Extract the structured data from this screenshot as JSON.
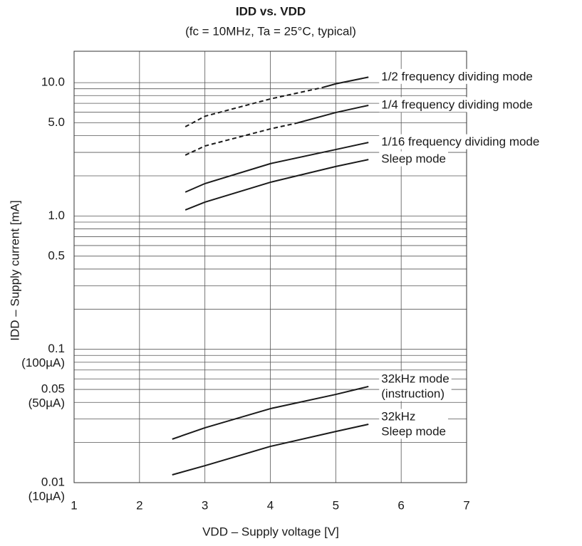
{
  "chart_data": {
    "type": "line",
    "title": "IDD vs. VDD",
    "subtitle": "(fc = 10MHz, Ta = 25°C, typical)",
    "xlabel": "VDD – Supply voltage [V]",
    "ylabel": "IDD – Supply current [mA]",
    "xlim": [
      1,
      7
    ],
    "xticks": [
      1,
      2,
      3,
      4,
      5,
      6,
      7
    ],
    "ylim": [
      0.01,
      17.2
    ],
    "log_y": true,
    "grid": true,
    "yticks": [
      {
        "value": 0.01,
        "label": "0.01",
        "sublabel": "(10µA)"
      },
      {
        "value": 0.05,
        "label": "0.05",
        "sublabel": "(50µA)"
      },
      {
        "value": 0.1,
        "label": "0.1",
        "sublabel": "(100µA)"
      },
      {
        "value": 0.5,
        "label": "0.5"
      },
      {
        "value": 1,
        "label": "1.0"
      },
      {
        "value": 5,
        "label": "5.0"
      },
      {
        "value": 10,
        "label": "10.0"
      }
    ],
    "yminor": [
      0.02,
      0.03,
      0.04,
      0.06,
      0.07,
      0.08,
      0.09,
      0.2,
      0.3,
      0.4,
      0.6,
      0.7,
      0.8,
      0.9,
      2,
      3,
      4,
      6,
      7,
      8,
      9
    ],
    "color": "#1a1a1a",
    "series": [
      {
        "name": [
          "1/2 frequency dividing mode"
        ],
        "segments": [
          {
            "dashed": true,
            "x": [
              2.7,
              3,
              4,
              4.8
            ],
            "values": [
              4.67,
              5.6,
              7.55,
              9.2
            ]
          },
          {
            "dashed": false,
            "x": [
              4.8,
              5,
              5.5
            ],
            "values": [
              9.2,
              9.8,
              11.0
            ]
          }
        ]
      },
      {
        "name": [
          "1/4 frequency dividing mode"
        ],
        "segments": [
          {
            "dashed": true,
            "x": [
              2.7,
              3,
              4,
              4.4
            ],
            "values": [
              2.86,
              3.35,
              4.5,
              4.97
            ]
          },
          {
            "dashed": false,
            "x": [
              4.4,
              5,
              5.5
            ],
            "values": [
              4.97,
              5.97,
              6.76
            ]
          }
        ]
      },
      {
        "name": [
          "1/16 frequency dividing mode"
        ],
        "segments": [
          {
            "dashed": false,
            "x": [
              2.7,
              3,
              4,
              5,
              5.5
            ],
            "values": [
              1.51,
              1.75,
              2.47,
              3.15,
              3.56
            ]
          }
        ]
      },
      {
        "name": [
          "Sleep mode"
        ],
        "segments": [
          {
            "dashed": false,
            "x": [
              2.7,
              3,
              4,
              5,
              5.5
            ],
            "values": [
              1.11,
              1.27,
              1.79,
              2.35,
              2.65
            ]
          }
        ]
      },
      {
        "name": [
          "32kHz mode",
          "(instruction)"
        ],
        "segments": [
          {
            "dashed": false,
            "x": [
              2.5,
              3,
              4,
              5,
              5.5
            ],
            "values": [
              0.0212,
              0.0258,
              0.0359,
              0.0459,
              0.0526
            ]
          }
        ]
      },
      {
        "name": [
          "32kHz",
          "Sleep mode"
        ],
        "segments": [
          {
            "dashed": false,
            "x": [
              2.5,
              3,
              4,
              5,
              5.5
            ],
            "values": [
              0.01145,
              0.0134,
              0.0187,
              0.0242,
              0.0274
            ]
          }
        ]
      }
    ]
  }
}
